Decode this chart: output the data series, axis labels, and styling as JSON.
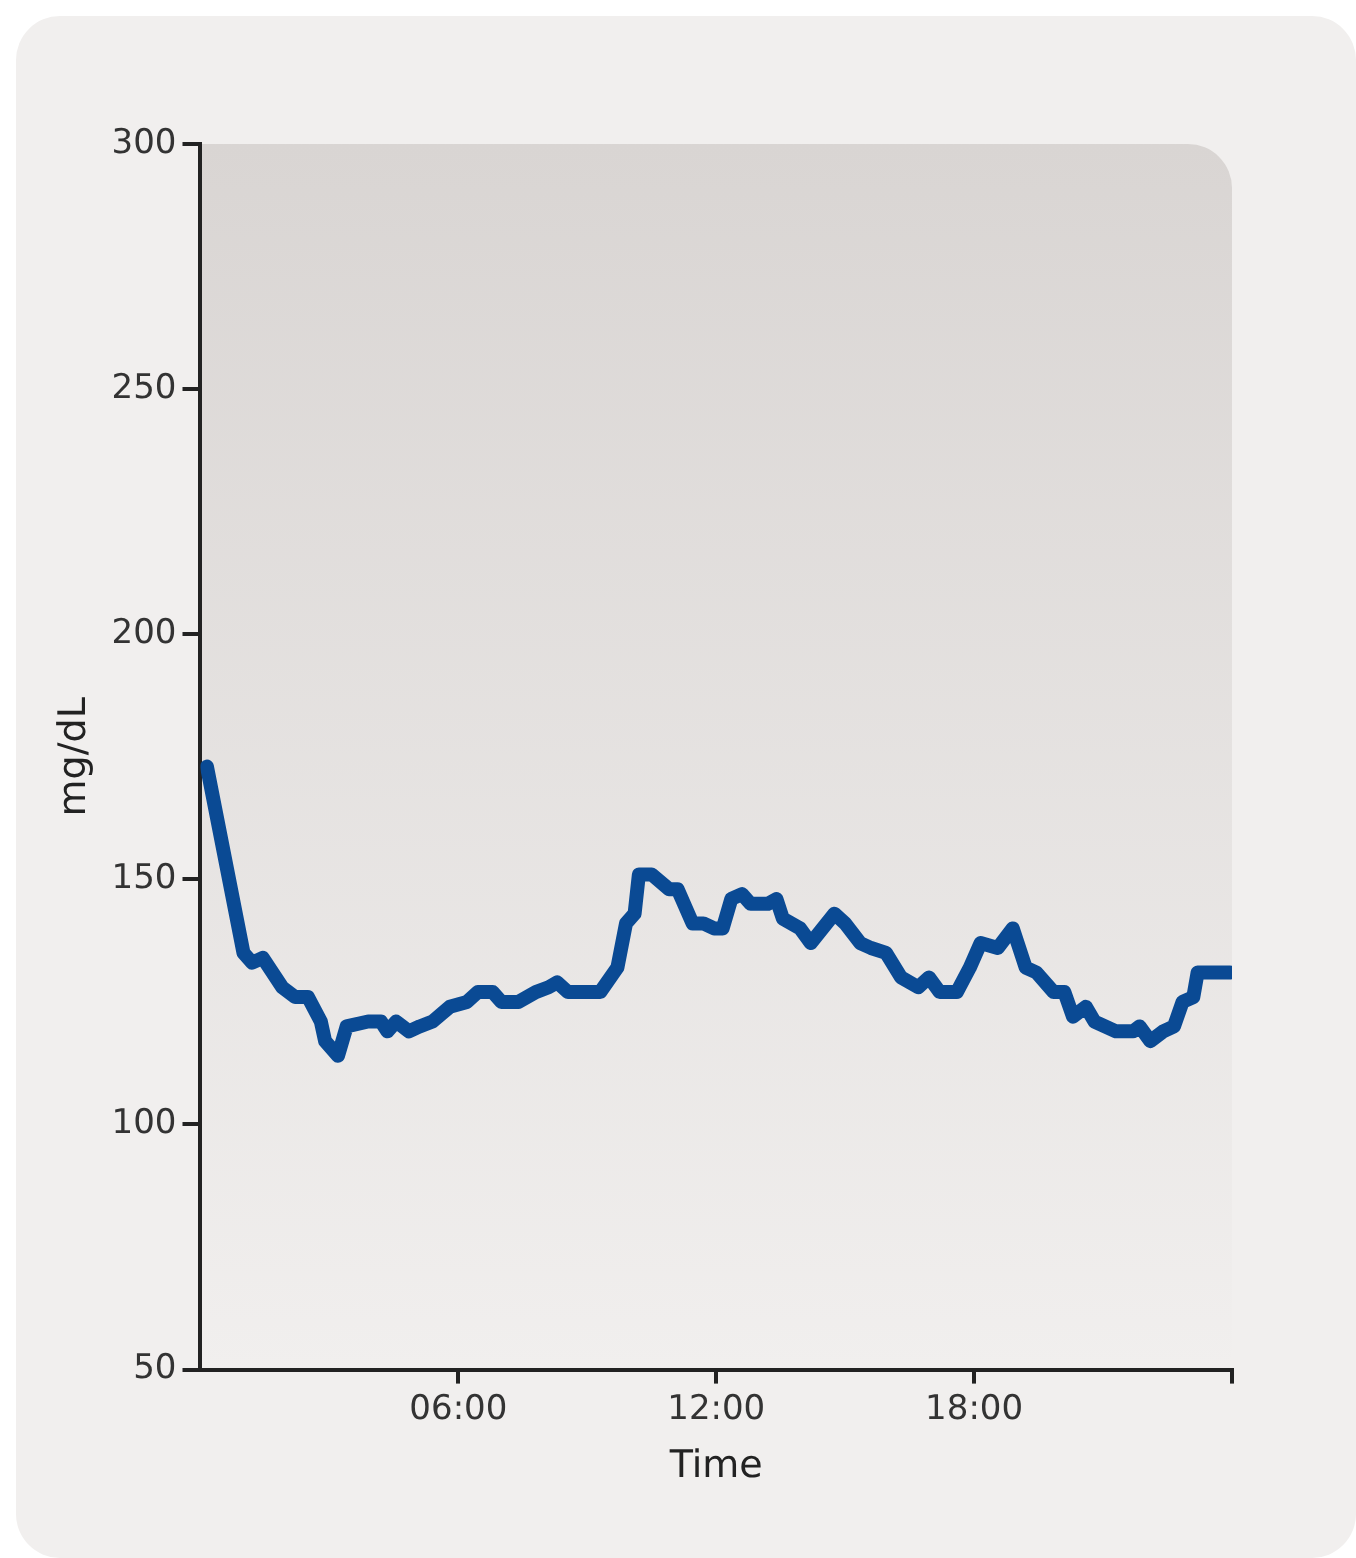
{
  "chart_data": {
    "type": "line",
    "xlabel": "Time",
    "ylabel": "mg/dL",
    "x": [
      0.15,
      1.0,
      1.2,
      1.45,
      1.9,
      2.2,
      2.5,
      2.8,
      2.9,
      3.2,
      3.4,
      3.9,
      4.2,
      4.35,
      4.55,
      4.85,
      5.1,
      5.4,
      5.8,
      6.2,
      6.45,
      6.8,
      7.0,
      7.4,
      7.8,
      8.1,
      8.3,
      8.55,
      8.95,
      9.3,
      9.7,
      9.9,
      10.1,
      10.2,
      10.5,
      10.9,
      11.1,
      11.45,
      11.7,
      11.95,
      12.15,
      12.35,
      12.6,
      12.8,
      13.2,
      13.4,
      13.55,
      13.95,
      14.2,
      14.75,
      15.0,
      15.35,
      15.6,
      15.95,
      16.3,
      16.7,
      16.95,
      17.2,
      17.6,
      17.9,
      18.15,
      18.55,
      18.9,
      19.2,
      19.45,
      19.85,
      20.1,
      20.3,
      20.6,
      20.8,
      21.3,
      21.7,
      21.85,
      22.1,
      22.4,
      22.65,
      22.85,
      23.1,
      23.2,
      23.45,
      23.7,
      23.95
    ],
    "series": [
      {
        "color": "#0a4a94",
        "values": [
          173,
          135,
          133,
          134,
          128,
          126,
          126,
          121,
          117,
          114,
          120,
          121,
          121,
          119,
          121,
          119,
          120,
          121,
          124,
          125,
          127,
          127,
          125,
          125,
          127,
          128,
          129,
          127,
          127,
          127,
          132,
          141,
          143,
          151,
          151,
          148,
          148,
          141,
          141,
          140,
          140,
          146,
          147,
          145,
          145,
          146,
          142,
          140,
          137,
          143,
          141,
          137,
          136,
          135,
          130,
          128,
          130,
          127,
          127,
          132,
          137,
          136,
          140,
          132,
          131,
          127,
          127,
          122,
          124,
          121,
          119,
          119,
          120,
          117,
          119,
          120,
          125,
          126,
          131,
          131,
          131,
          131
        ]
      }
    ],
    "xlim": [
      0,
      24
    ],
    "xticks": [
      {
        "value": 6,
        "label": "06:00"
      },
      {
        "value": 12,
        "label": "12:00"
      },
      {
        "value": 18,
        "label": "18:00"
      },
      {
        "value": 24,
        "label": null
      }
    ],
    "ylim": [
      50,
      300
    ],
    "yticks": [
      50,
      100,
      150,
      200,
      250,
      300
    ],
    "grid": false,
    "legend": false,
    "marker": "none",
    "line_style": "solid"
  }
}
